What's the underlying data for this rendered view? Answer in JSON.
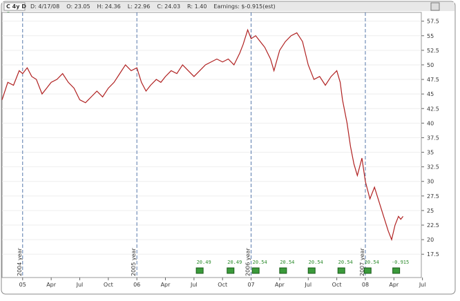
{
  "header": {
    "symbol": "C 4y D",
    "fields": [
      "D: 4/17/08",
      "O: 23.05",
      "H: 24.36",
      "L: 22.96",
      "C: 24.03",
      "R: 1.40",
      "Earnings: $-0.915(est)"
    ]
  },
  "chart_data": {
    "type": "line",
    "x": [
      2004.82,
      2004.87,
      2004.92,
      2004.97,
      2005.0,
      2005.04,
      2005.08,
      2005.12,
      2005.17,
      2005.21,
      2005.25,
      2005.3,
      2005.35,
      2005.4,
      2005.45,
      2005.5,
      2005.55,
      2005.6,
      2005.65,
      2005.7,
      2005.75,
      2005.8,
      2005.85,
      2005.9,
      2005.95,
      2006.0,
      2006.04,
      2006.08,
      2006.12,
      2006.17,
      2006.21,
      2006.25,
      2006.3,
      2006.35,
      2006.4,
      2006.45,
      2006.5,
      2006.55,
      2006.6,
      2006.65,
      2006.7,
      2006.75,
      2006.8,
      2006.85,
      2006.9,
      2006.93,
      2006.97,
      2007.0,
      2007.04,
      2007.08,
      2007.12,
      2007.17,
      2007.2,
      2007.25,
      2007.3,
      2007.35,
      2007.4,
      2007.45,
      2007.5,
      2007.55,
      2007.6,
      2007.65,
      2007.7,
      2007.75,
      2007.78,
      2007.8,
      2007.84,
      2007.87,
      2007.9,
      2007.93,
      2007.97,
      2008.0,
      2008.04,
      2008.08,
      2008.12,
      2008.16,
      2008.2,
      2008.23,
      2008.26,
      2008.29,
      2008.31,
      2008.33
    ],
    "series": [
      {
        "color": "#b02020",
        "values": [
          44,
          47,
          46.5,
          49,
          48.5,
          49.5,
          48,
          47.5,
          45,
          46,
          47,
          47.5,
          48.5,
          47,
          46,
          44,
          43.5,
          44.5,
          45.5,
          44.5,
          46,
          47,
          48.5,
          50,
          49,
          49.5,
          47,
          45.5,
          46.5,
          47.5,
          47,
          48,
          49,
          48.5,
          50,
          49,
          48,
          49,
          50,
          50.5,
          51,
          50.5,
          51,
          50,
          52,
          53.5,
          56,
          54.5,
          55,
          54,
          53,
          51,
          49,
          52.5,
          54,
          55,
          55.5,
          54,
          50,
          47.5,
          48,
          46.5,
          48,
          49,
          47,
          44,
          40,
          36,
          33,
          31,
          34,
          30,
          27,
          29,
          26.5,
          24,
          21.5,
          20,
          22.5,
          24,
          23.5,
          24
        ]
      }
    ],
    "xlim": [
      2004.82,
      2008.49
    ],
    "xticks": [
      {
        "value": 2005,
        "label": "05"
      },
      {
        "value": 2005.25,
        "label": "Apr"
      },
      {
        "value": 2005.5,
        "label": "Jul"
      },
      {
        "value": 2005.75,
        "label": "Oct"
      },
      {
        "value": 2006,
        "label": "06"
      },
      {
        "value": 2006.25,
        "label": "Apr"
      },
      {
        "value": 2006.5,
        "label": "Jul"
      },
      {
        "value": 2006.75,
        "label": "Oct"
      },
      {
        "value": 2007,
        "label": "07"
      },
      {
        "value": 2007.25,
        "label": "Apr"
      },
      {
        "value": 2007.5,
        "label": "Jul"
      },
      {
        "value": 2007.75,
        "label": "Oct"
      },
      {
        "value": 2008,
        "label": "08"
      },
      {
        "value": 2008.25,
        "label": "Apr"
      },
      {
        "value": 2008.5,
        "label": "Jul"
      }
    ],
    "ylim": [
      13.5,
      59
    ],
    "yticks": [
      {
        "value": 17.5,
        "label": "17.5"
      },
      20,
      {
        "value": 22.5,
        "label": "22.5"
      },
      25,
      {
        "value": 27.5,
        "label": "27.5"
      },
      30,
      {
        "value": 32.5,
        "label": "32.5"
      },
      35,
      {
        "value": 37.5,
        "label": "37.5"
      },
      40,
      {
        "value": 42.5,
        "label": "42.5"
      },
      45,
      {
        "value": 47.5,
        "label": "47.5"
      },
      50,
      {
        "value": 52.5,
        "label": "52.5"
      },
      55,
      {
        "value": 57.5,
        "label": "57.5"
      }
    ],
    "grid": true,
    "year_markers": [
      {
        "x": 2005,
        "label": "2004 year"
      },
      {
        "x": 2006,
        "label": "2005 year"
      },
      {
        "x": 2007,
        "label": "2006 year"
      },
      {
        "x": 2008,
        "label": "2007 year"
      }
    ],
    "earnings": [
      {
        "x": 2006.55,
        "label": "20.49"
      },
      {
        "x": 2006.82,
        "label": "20.49"
      },
      {
        "x": 2007.04,
        "label": "20.54"
      },
      {
        "x": 2007.28,
        "label": "20.54"
      },
      {
        "x": 2007.53,
        "label": "20.54"
      },
      {
        "x": 2007.79,
        "label": "20.54"
      },
      {
        "x": 2008.02,
        "label": "20.54"
      },
      {
        "x": 2008.27,
        "label": "-0.915"
      }
    ]
  }
}
